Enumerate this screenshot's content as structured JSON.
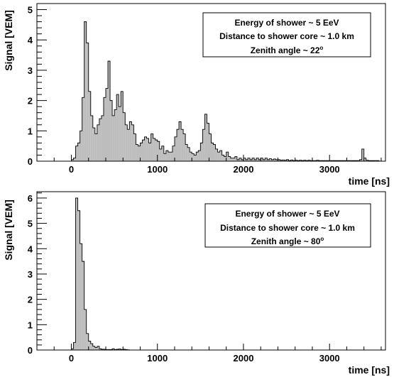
{
  "colors": {
    "fill": "#bdbdbd",
    "stroke": "#000000",
    "background": "#ffffff"
  },
  "chart_data": [
    {
      "type": "bar",
      "style": "histogram",
      "ylabel": "Signal [VEM]",
      "xlabel": "time [ns]",
      "xlim": [
        -400,
        3650
      ],
      "ylim": [
        0,
        5.2
      ],
      "xticks": [
        0,
        1000,
        2000,
        3000
      ],
      "yticks": [
        0,
        1,
        2,
        3,
        4,
        5
      ],
      "bin_width": 25,
      "legend": [
        "Energy of shower ~ 5 EeV",
        "Distance to shower core ~ 1.0 km",
        "Zenith angle ~ 22",
        "o"
      ],
      "legend_position": "top-right",
      "bins": [
        [
          0,
          0.05
        ],
        [
          25,
          0.1
        ],
        [
          50,
          0.5
        ],
        [
          75,
          0.6
        ],
        [
          100,
          1.0
        ],
        [
          125,
          2.1
        ],
        [
          150,
          4.6
        ],
        [
          175,
          3.9
        ],
        [
          200,
          2.3
        ],
        [
          225,
          1.5
        ],
        [
          250,
          1.1
        ],
        [
          275,
          0.9
        ],
        [
          300,
          1.2
        ],
        [
          325,
          1.4
        ],
        [
          350,
          1.5
        ],
        [
          375,
          2.1
        ],
        [
          400,
          2.4
        ],
        [
          425,
          3.3
        ],
        [
          450,
          2.0
        ],
        [
          475,
          1.5
        ],
        [
          500,
          1.7
        ],
        [
          525,
          2.2
        ],
        [
          550,
          1.8
        ],
        [
          575,
          2.3
        ],
        [
          600,
          1.6
        ],
        [
          625,
          1.2
        ],
        [
          650,
          1.05
        ],
        [
          675,
          1.3
        ],
        [
          700,
          1.2
        ],
        [
          725,
          0.9
        ],
        [
          750,
          0.55
        ],
        [
          775,
          0.5
        ],
        [
          800,
          0.6
        ],
        [
          825,
          0.7
        ],
        [
          850,
          0.8
        ],
        [
          875,
          0.75
        ],
        [
          900,
          0.6
        ],
        [
          925,
          0.9
        ],
        [
          950,
          0.75
        ],
        [
          975,
          0.7
        ],
        [
          1000,
          0.65
        ],
        [
          1025,
          0.4
        ],
        [
          1050,
          0.5
        ],
        [
          1075,
          0.25
        ],
        [
          1100,
          0.35
        ],
        [
          1125,
          0.3
        ],
        [
          1150,
          0.3
        ],
        [
          1175,
          0.5
        ],
        [
          1200,
          0.8
        ],
        [
          1225,
          1.05
        ],
        [
          1250,
          1.3
        ],
        [
          1275,
          1.05
        ],
        [
          1300,
          0.9
        ],
        [
          1325,
          0.55
        ],
        [
          1350,
          0.45
        ],
        [
          1375,
          0.3
        ],
        [
          1400,
          0.25
        ],
        [
          1425,
          0.2
        ],
        [
          1450,
          0.3
        ],
        [
          1475,
          0.35
        ],
        [
          1500,
          0.6
        ],
        [
          1525,
          1.05
        ],
        [
          1550,
          1.55
        ],
        [
          1575,
          1.25
        ],
        [
          1600,
          0.9
        ],
        [
          1625,
          0.6
        ],
        [
          1650,
          0.55
        ],
        [
          1675,
          0.4
        ],
        [
          1700,
          0.3
        ],
        [
          1725,
          0.35
        ],
        [
          1750,
          0.2
        ],
        [
          1775,
          0.15
        ],
        [
          1800,
          0.3
        ],
        [
          1825,
          0.15
        ],
        [
          1850,
          0.1
        ],
        [
          1875,
          0.1
        ],
        [
          1900,
          0.15
        ],
        [
          1925,
          0.05
        ],
        [
          1950,
          0.1
        ],
        [
          1975,
          0.05
        ],
        [
          2000,
          0.1
        ],
        [
          2025,
          0.05
        ],
        [
          2050,
          0.1
        ],
        [
          2075,
          0.05
        ],
        [
          2100,
          0.1
        ],
        [
          2125,
          0.05
        ],
        [
          2150,
          0.1
        ],
        [
          2175,
          0.05
        ],
        [
          2200,
          0.1
        ],
        [
          2225,
          0.05
        ],
        [
          2250,
          0.1
        ],
        [
          2275,
          0.05
        ],
        [
          2300,
          0.08
        ],
        [
          2325,
          0.05
        ],
        [
          2350,
          0.07
        ],
        [
          2375,
          0.05
        ],
        [
          2400,
          0.05
        ],
        [
          2425,
          0.03
        ],
        [
          2450,
          0.04
        ],
        [
          2475,
          0.03
        ],
        [
          2500,
          0.05
        ],
        [
          2525,
          0.02
        ],
        [
          2550,
          0.04
        ],
        [
          2575,
          0.02
        ],
        [
          2600,
          0.03
        ],
        [
          2625,
          0.02
        ],
        [
          2650,
          0.03
        ],
        [
          2675,
          0.02
        ],
        [
          2700,
          0.03
        ],
        [
          2725,
          0.02
        ],
        [
          2750,
          0.03
        ],
        [
          2775,
          0.02
        ],
        [
          2800,
          0.02
        ],
        [
          2825,
          0.02
        ],
        [
          2850,
          0.03
        ],
        [
          2875,
          0.02
        ],
        [
          2900,
          0.02
        ],
        [
          2925,
          0.02
        ],
        [
          2950,
          0.02
        ],
        [
          2975,
          0.02
        ],
        [
          3000,
          0.02
        ],
        [
          3025,
          0.02
        ],
        [
          3050,
          0.02
        ],
        [
          3075,
          0.02
        ],
        [
          3100,
          0.02
        ],
        [
          3125,
          0.02
        ],
        [
          3150,
          0.02
        ],
        [
          3175,
          0.02
        ],
        [
          3200,
          0.02
        ],
        [
          3225,
          0.02
        ],
        [
          3250,
          0.02
        ],
        [
          3275,
          0.02
        ],
        [
          3300,
          0.02
        ],
        [
          3325,
          0.02
        ],
        [
          3350,
          0.05
        ],
        [
          3375,
          0.4
        ],
        [
          3400,
          0.1
        ],
        [
          3425,
          0.03
        ],
        [
          3450,
          0.02
        ],
        [
          3475,
          0.02
        ],
        [
          3500,
          0.02
        ],
        [
          3525,
          0.02
        ],
        [
          3550,
          0.02
        ],
        [
          3575,
          0
        ]
      ]
    },
    {
      "type": "bar",
      "style": "histogram",
      "ylabel": "Signal [VEM]",
      "xlabel": "time [ns]",
      "xlim": [
        -400,
        3650
      ],
      "ylim": [
        0,
        6.25
      ],
      "xticks": [
        0,
        1000,
        2000,
        3000
      ],
      "yticks": [
        0,
        1,
        2,
        3,
        4,
        5,
        6
      ],
      "bin_width": 25,
      "legend": [
        "Energy of shower ~ 5 EeV",
        "Distance to shower core ~ 1.0 km",
        "Zenith angle ~ 80",
        "o"
      ],
      "legend_position": "top-right",
      "bins": [
        [
          0,
          0.05
        ],
        [
          25,
          0.3
        ],
        [
          50,
          6.0
        ],
        [
          75,
          5.5
        ],
        [
          100,
          4.2
        ],
        [
          125,
          3.5
        ],
        [
          150,
          1.6
        ],
        [
          175,
          0.65
        ],
        [
          200,
          0.35
        ],
        [
          225,
          0.25
        ],
        [
          250,
          0.15
        ],
        [
          275,
          0.1
        ],
        [
          300,
          0.15
        ],
        [
          325,
          0.05
        ],
        [
          350,
          0.03
        ],
        [
          375,
          0.03
        ],
        [
          400,
          0.02
        ],
        [
          425,
          0.02
        ],
        [
          450,
          0.02
        ],
        [
          475,
          0.05
        ],
        [
          500,
          0.02
        ],
        [
          525,
          0.03
        ],
        [
          550,
          0.04
        ],
        [
          575,
          0.02
        ],
        [
          600,
          0.03
        ],
        [
          625,
          0.02
        ],
        [
          650,
          0.01
        ],
        [
          675,
          0
        ]
      ]
    }
  ]
}
